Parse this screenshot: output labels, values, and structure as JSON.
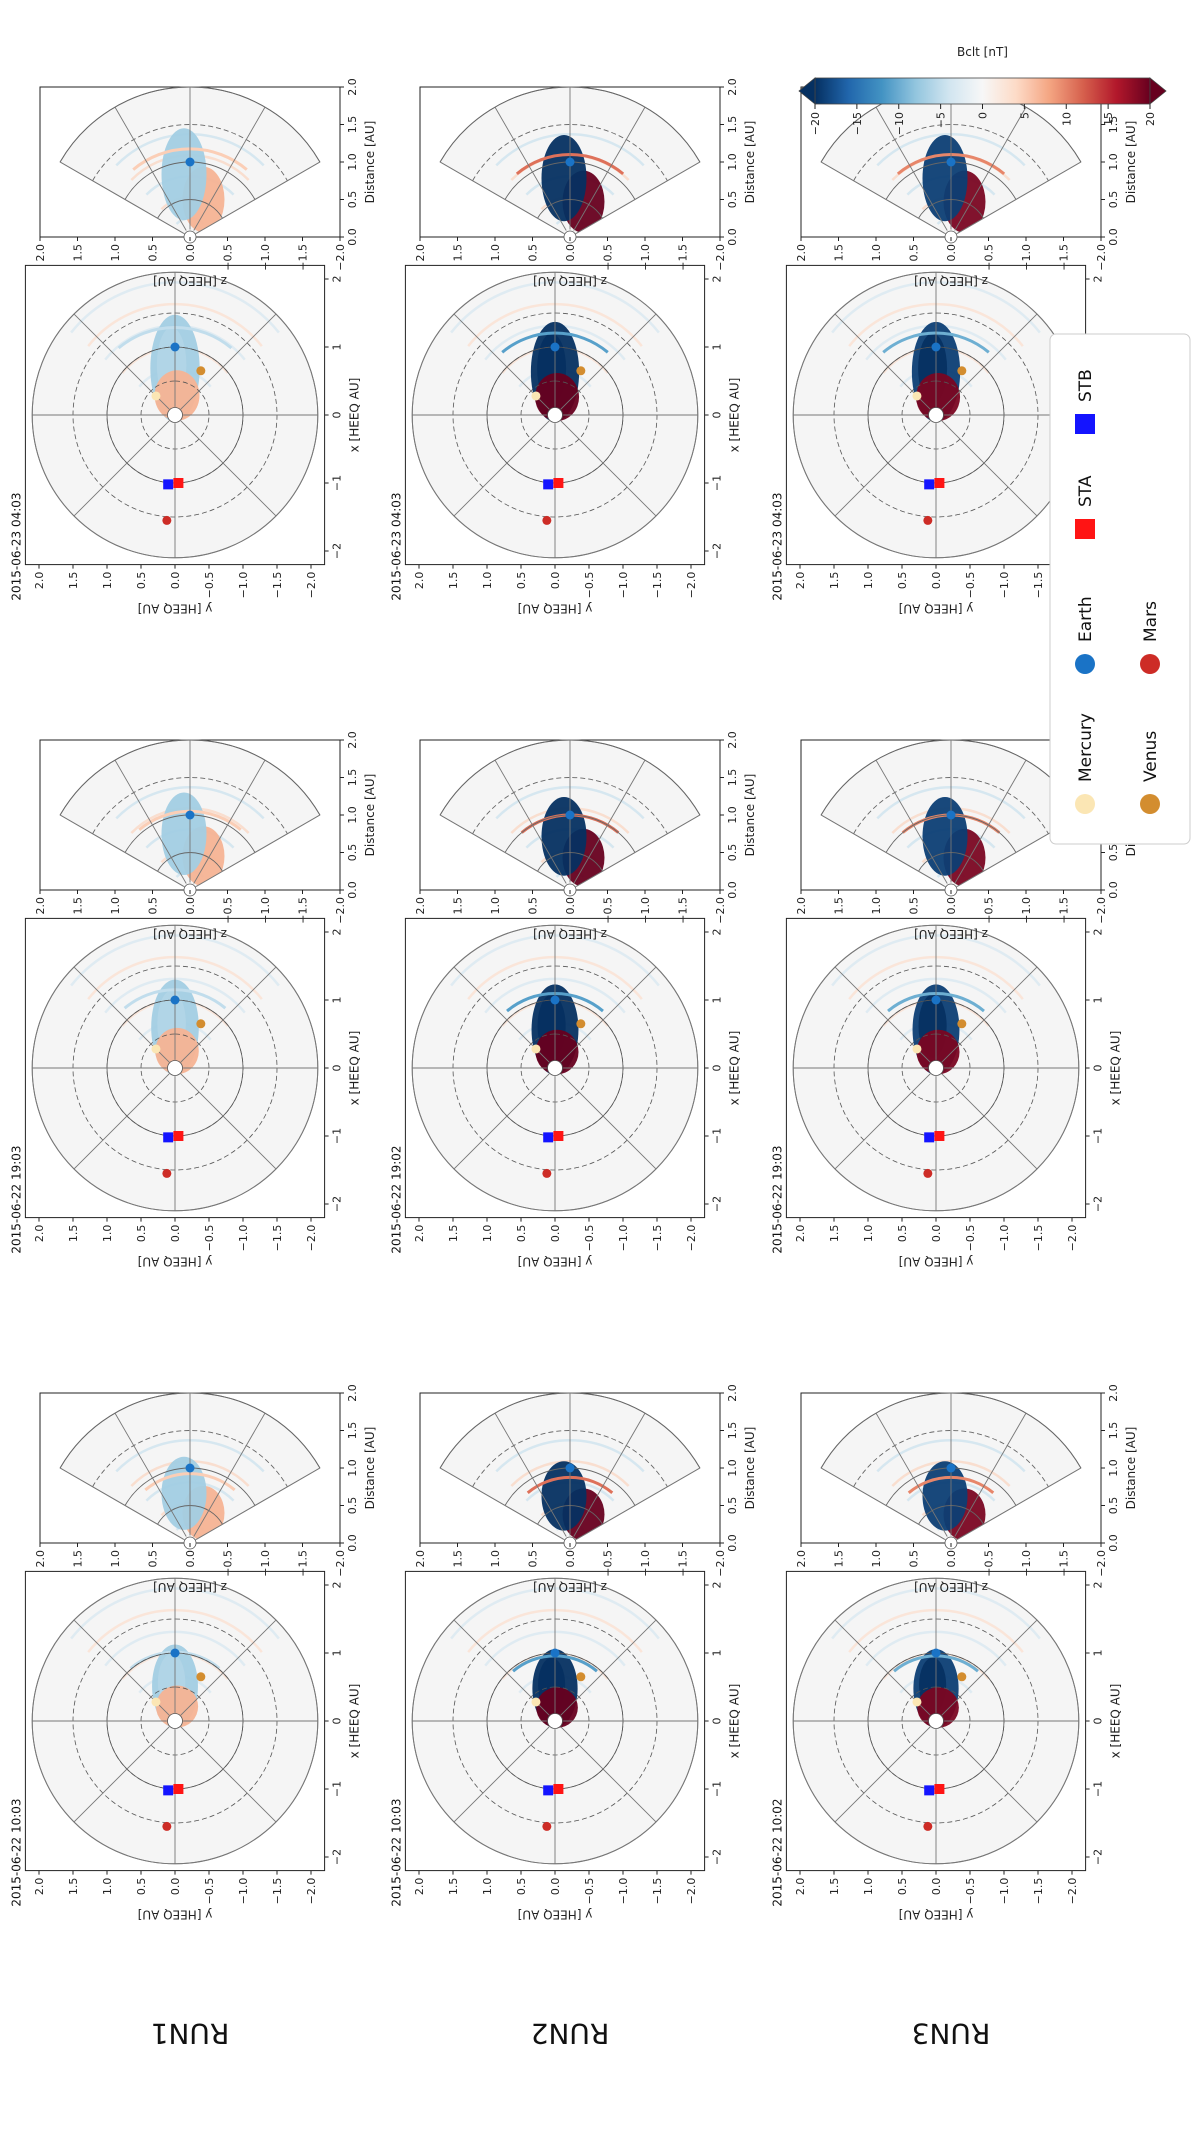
{
  "chart_data": {
    "type": "heatmap",
    "title": "",
    "rows": [
      {
        "label": "RUN1",
        "cme_strength": 0.25,
        "panels": [
          {
            "timestamp": "2015-06-22 10:03",
            "cme_extent": 0.75
          },
          {
            "timestamp": "2015-06-22 19:03",
            "cme_extent": 1.0
          },
          {
            "timestamp": "2015-06-23 04:03",
            "cme_extent": 1.25
          }
        ]
      },
      {
        "label": "RUN2",
        "cme_strength": 1.0,
        "panels": [
          {
            "timestamp": "2015-06-22 10:03",
            "cme_extent": 0.65
          },
          {
            "timestamp": "2015-06-22 19:02",
            "cme_extent": 0.9
          },
          {
            "timestamp": "2015-06-23 04:03",
            "cme_extent": 1.1
          }
        ]
      },
      {
        "label": "RUN3",
        "cme_strength": 0.85,
        "panels": [
          {
            "timestamp": "2015-06-22 10:02",
            "cme_extent": 0.65
          },
          {
            "timestamp": "2015-06-22 19:03",
            "cme_extent": 0.9
          },
          {
            "timestamp": "2015-06-23 04:03",
            "cme_extent": 1.1
          }
        ]
      }
    ],
    "equatorial_panel": {
      "xlabel": "x [HEEQ AU]",
      "ylabel": "y [HEEQ AU]",
      "xlim": [
        -2.2,
        2.2
      ],
      "ylim": [
        -2.2,
        2.2
      ],
      "xticks": [
        "−2",
        "−1",
        "0",
        "1",
        "2"
      ],
      "yticks": [
        "2.0",
        "1.5",
        "1.0",
        "0.5",
        "0.0",
        "−0.5",
        "−1.0",
        "−1.5",
        "−2.0"
      ],
      "ytick_values": [
        2.0,
        1.5,
        1.0,
        0.5,
        0.0,
        -0.5,
        -1.0,
        -1.5,
        -2.0
      ]
    },
    "meridional_panel": {
      "xlabel": "Distance [AU]",
      "ylabel": "z [HEEQ AU]",
      "xlim": [
        0,
        2.0
      ],
      "ylim": [
        -2.0,
        2.0
      ],
      "xticks": [
        "0.0",
        "0.5",
        "1.0",
        "1.5",
        "2.0"
      ],
      "xtick_values": [
        0.0,
        0.5,
        1.0,
        1.5,
        2.0
      ],
      "yticks": [
        "2.0",
        "1.5",
        "1.0",
        "0.5",
        "0.0",
        "−0.5",
        "−1.0",
        "−1.5",
        "−2.0"
      ],
      "ytick_values": [
        2.0,
        1.5,
        1.0,
        0.5,
        0.0,
        -0.5,
        -1.0,
        -1.5,
        -2.0
      ],
      "grid_radii": [
        0.5,
        1.0,
        1.5,
        2.0
      ],
      "grid_dashed_radius": 1.5,
      "latitude_lines_deg": [
        -60,
        -30,
        0,
        30,
        60
      ]
    },
    "bodies": [
      {
        "name": "Mercury",
        "marker": "circle",
        "color": "#fbe6b4",
        "x": 0.28,
        "y": 0.28
      },
      {
        "name": "Venus",
        "marker": "circle",
        "color": "#d38d2f",
        "x": 0.65,
        "y": -0.38
      },
      {
        "name": "Earth",
        "marker": "circle",
        "color": "#1a73c6",
        "x": 1.0,
        "y": 0.0
      },
      {
        "name": "Mars",
        "marker": "circle",
        "color": "#cd2c26",
        "x": -1.55,
        "y": 0.12
      },
      {
        "name": "STA",
        "marker": "square",
        "color": "#ff1414",
        "x": -1.0,
        "y": -0.05
      },
      {
        "name": "STB",
        "marker": "square",
        "color": "#1414ff",
        "x": -1.02,
        "y": 0.1
      }
    ],
    "colorbar": {
      "label": "Bclt  [nT]",
      "min": -20,
      "max": 20,
      "ticks": [
        "−20",
        "−15",
        "−10",
        "−5",
        "0",
        "5",
        "10",
        "15",
        "20"
      ],
      "tick_values": [
        -20,
        -15,
        -10,
        -5,
        0,
        5,
        10,
        15,
        20
      ],
      "colormap": "RdBu_r",
      "colors": [
        "#67001f",
        "#b2182b",
        "#d6604d",
        "#f4a582",
        "#fddbc7",
        "#f7f7f7",
        "#d1e5f0",
        "#92c5de",
        "#4393c3",
        "#2166ac",
        "#053061"
      ]
    },
    "legend": {
      "entries": [
        "Mercury",
        "Venus",
        "Earth",
        "Mars",
        "STA",
        "STB"
      ],
      "location": "lower-right"
    }
  }
}
